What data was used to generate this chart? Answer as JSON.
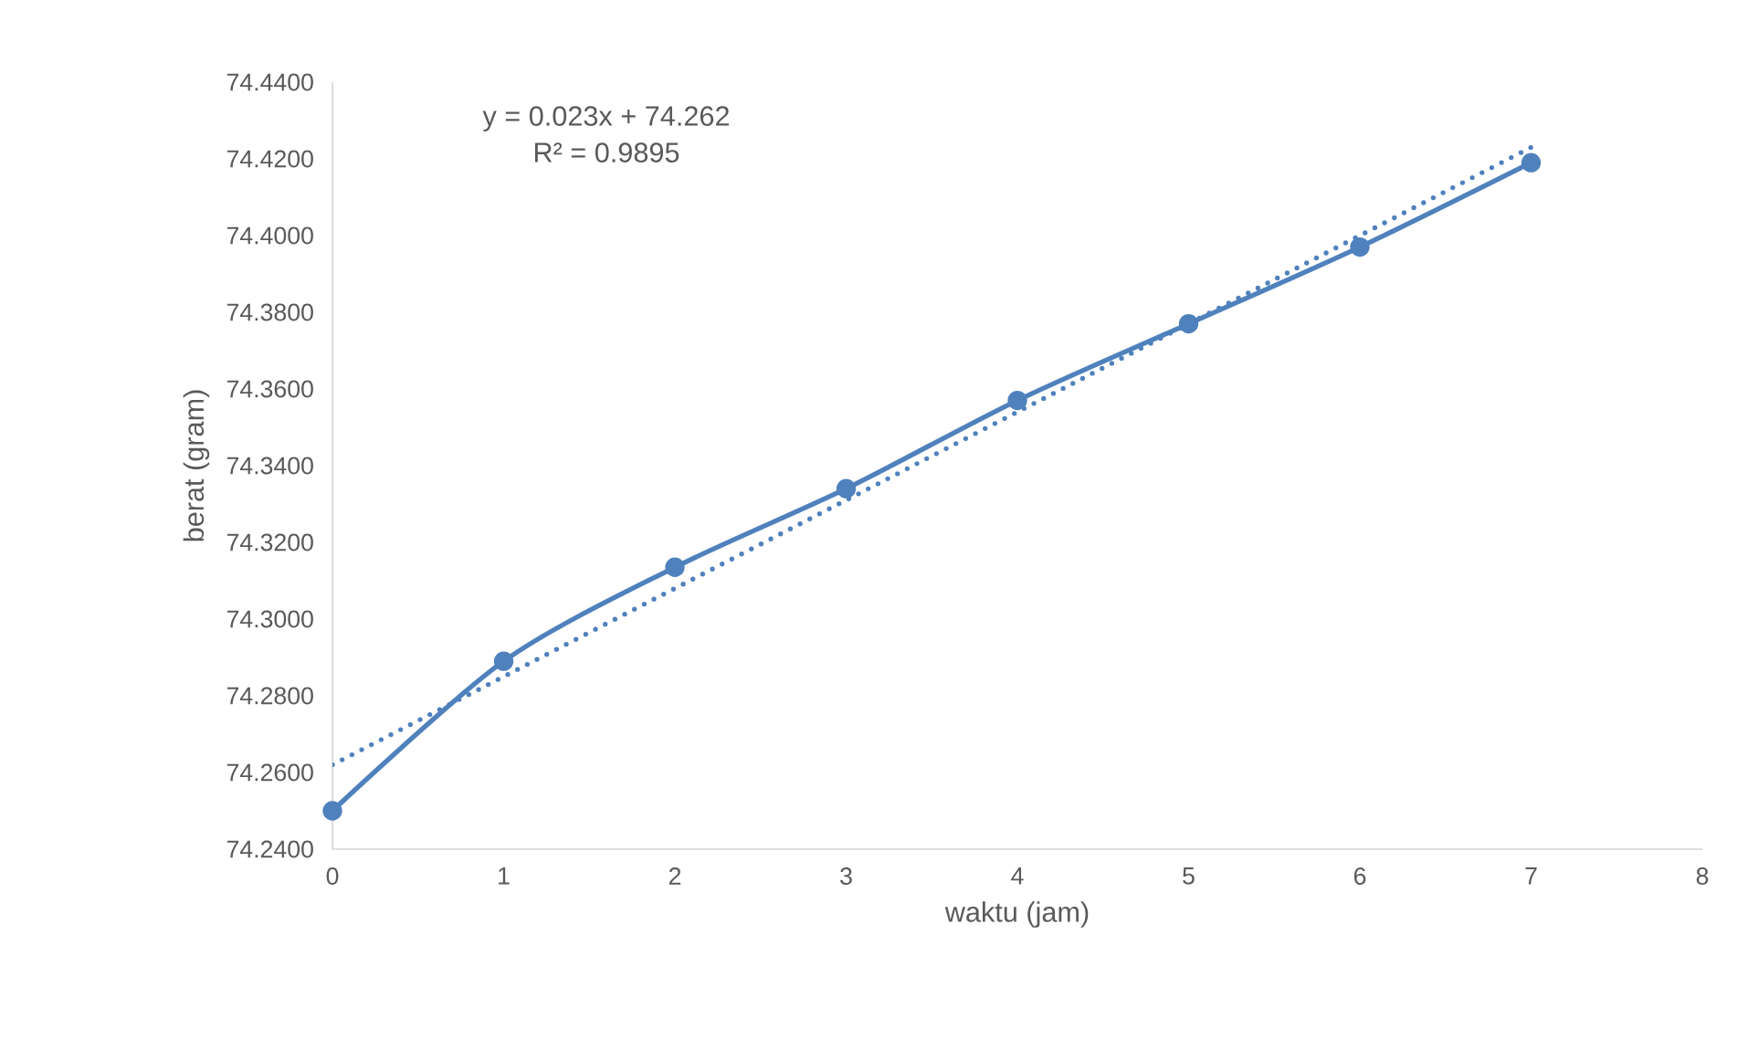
{
  "chart_data": {
    "type": "line",
    "xlabel": "waktu (jam)",
    "ylabel": "berat (gram)",
    "annotations": [
      "y = 0.023x + 74.262",
      "R² = 0.9895"
    ],
    "x": [
      0,
      1,
      2,
      3,
      4,
      5,
      6,
      7
    ],
    "series": [
      {
        "color": "#4f81bd",
        "marker": "circle",
        "line_style": "solid",
        "values": [
          74.25,
          74.289,
          74.3135,
          74.334,
          74.357,
          74.377,
          74.397,
          74.419
        ]
      },
      {
        "type": "line",
        "color": "#4f81bd",
        "marker": "none",
        "line_style": "dotted",
        "x": [
          0,
          7
        ],
        "values": [
          74.262,
          74.423
        ]
      }
    ],
    "xlim": [
      0,
      8
    ],
    "xticks": [
      0,
      1,
      2,
      3,
      4,
      5,
      6,
      7,
      8
    ],
    "ylim": [
      74.24,
      74.44
    ],
    "yticks": [
      {
        "value": 74.24,
        "label": "74.2400"
      },
      {
        "value": 74.26,
        "label": "74.2600"
      },
      {
        "value": 74.28,
        "label": "74.2800"
      },
      {
        "value": 74.3,
        "label": "74.3000"
      },
      {
        "value": 74.32,
        "label": "74.3200"
      },
      {
        "value": 74.34,
        "label": "74.3400"
      },
      {
        "value": 74.36,
        "label": "74.3600"
      },
      {
        "value": 74.38,
        "label": "74.3800"
      },
      {
        "value": 74.4,
        "label": "74.4000"
      },
      {
        "value": 74.42,
        "label": "74.4200"
      },
      {
        "value": 74.44,
        "label": "74.4400"
      }
    ]
  }
}
